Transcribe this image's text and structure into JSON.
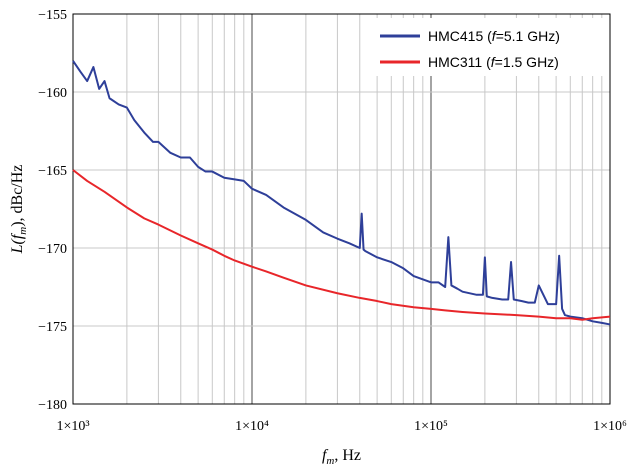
{
  "chart_data": {
    "type": "line",
    "xlabel_main": "f",
    "xlabel_sub": "m",
    "xlabel_suffix": ", Hz",
    "ylabel_main": "L(f",
    "ylabel_sub": "m",
    "ylabel_suffix": "), dBc/Hz",
    "x_scale": "log",
    "xlim": [
      1000,
      1000000
    ],
    "ylim": [
      -180,
      -155
    ],
    "grid": true,
    "legend_position": "top-right",
    "x_ticks": [
      {
        "value": 1000,
        "label": "1×10³"
      },
      {
        "value": 10000,
        "label": "1×10⁴"
      },
      {
        "value": 100000,
        "label": "1×10⁵"
      },
      {
        "value": 1000000,
        "label": "1×10⁶"
      }
    ],
    "y_ticks": [
      {
        "value": -155,
        "label": "−155"
      },
      {
        "value": -160,
        "label": "−160"
      },
      {
        "value": -165,
        "label": "−165"
      },
      {
        "value": -170,
        "label": "−170"
      },
      {
        "value": -175,
        "label": "−175"
      },
      {
        "value": -180,
        "label": "−180"
      }
    ],
    "series": [
      {
        "name": "HMC415 (f=5.1 GHz)",
        "legend_parts": [
          "HMC415 (",
          "f",
          "=5.1 GHz)"
        ],
        "color": "#2e3f99",
        "x": [
          1000,
          1100,
          1200,
          1300,
          1400,
          1500,
          1600,
          1800,
          2000,
          2200,
          2500,
          2800,
          3000,
          3500,
          4000,
          4500,
          5000,
          5500,
          6000,
          7000,
          8000,
          9000,
          10000,
          12000,
          15000,
          20000,
          25000,
          30000,
          35000,
          40000,
          41000,
          42000,
          43000,
          50000,
          60000,
          70000,
          80000,
          100000,
          110000,
          120000,
          125000,
          130000,
          140000,
          150000,
          180000,
          195000,
          200000,
          205000,
          220000,
          250000,
          270000,
          280000,
          290000,
          320000,
          350000,
          380000,
          400000,
          450000,
          500000,
          520000,
          540000,
          560000,
          600000,
          700000,
          800000,
          900000,
          1000000
        ],
        "y": [
          -158.0,
          -158.7,
          -159.3,
          -158.4,
          -159.8,
          -159.3,
          -160.4,
          -160.8,
          -161.0,
          -161.8,
          -162.6,
          -163.2,
          -163.2,
          -163.9,
          -164.2,
          -164.2,
          -164.8,
          -165.1,
          -165.1,
          -165.5,
          -165.6,
          -165.7,
          -166.2,
          -166.6,
          -167.4,
          -168.2,
          -169.0,
          -169.4,
          -169.7,
          -170.0,
          -167.8,
          -170.1,
          -170.2,
          -170.6,
          -170.9,
          -171.3,
          -171.8,
          -172.2,
          -172.2,
          -172.5,
          -169.3,
          -172.4,
          -172.6,
          -172.8,
          -173.0,
          -173.0,
          -170.6,
          -173.1,
          -173.2,
          -173.3,
          -173.3,
          -170.9,
          -173.3,
          -173.4,
          -173.5,
          -173.5,
          -172.4,
          -173.6,
          -173.6,
          -170.5,
          -173.9,
          -174.3,
          -174.4,
          -174.5,
          -174.7,
          -174.8,
          -174.9
        ]
      },
      {
        "name": "HMC311 (f=1.5 GHz)",
        "legend_parts": [
          "HMC311 (",
          "f",
          "=1.5 GHz)"
        ],
        "color": "#e8262a",
        "x": [
          1000,
          1200,
          1500,
          2000,
          2500,
          3000,
          4000,
          5000,
          6000,
          7000,
          8000,
          10000,
          12000,
          15000,
          20000,
          30000,
          40000,
          50000,
          60000,
          80000,
          100000,
          120000,
          150000,
          200000,
          300000,
          400000,
          500000,
          600000,
          700000,
          800000,
          1000000
        ],
        "y": [
          -165.0,
          -165.7,
          -166.4,
          -167.4,
          -168.1,
          -168.5,
          -169.2,
          -169.7,
          -170.1,
          -170.5,
          -170.8,
          -171.2,
          -171.5,
          -171.9,
          -172.4,
          -172.9,
          -173.2,
          -173.4,
          -173.6,
          -173.8,
          -173.9,
          -174.0,
          -174.1,
          -174.2,
          -174.3,
          -174.4,
          -174.5,
          -174.5,
          -174.6,
          -174.5,
          -174.4
        ]
      }
    ]
  }
}
